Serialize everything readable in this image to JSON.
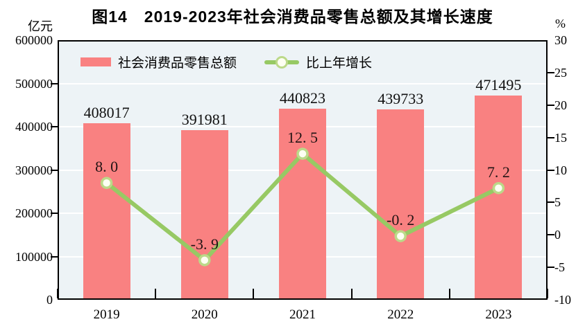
{
  "title": "图14　2019-2023年社会消费品零售总额及其增长速度",
  "axes": {
    "left_unit": "亿元",
    "right_unit": "%"
  },
  "legend": [
    {
      "label": "社会消费品零售总额",
      "marker": "bar-swatch"
    },
    {
      "label": "比上年增长",
      "marker": "line-circle"
    }
  ],
  "colors": {
    "bar": "#f98181",
    "line": "#97c964",
    "marker_fill": "#fdfff2",
    "marker_ring": "#bcd989",
    "plot_bg": "#edf3f6",
    "grid": "#ffffff",
    "axis": "#000000",
    "bar_label": "#111111",
    "line_label": "#221414"
  },
  "chart_data": {
    "type": "bar",
    "subtype": "bar+line combo",
    "title": "图14　2019-2023年社会消费品零售总额及其增长速度",
    "categories": [
      "2019",
      "2020",
      "2021",
      "2022",
      "2023"
    ],
    "series": [
      {
        "name": "社会消费品零售总额",
        "type": "bar",
        "axis": "left",
        "values": [
          408017,
          391981,
          440823,
          439733,
          471495
        ],
        "labels": [
          "408017",
          "391981",
          "440823",
          "439733",
          "471495"
        ]
      },
      {
        "name": "比上年增长",
        "type": "line",
        "axis": "right",
        "values": [
          8.0,
          -3.9,
          12.5,
          -0.2,
          7.2
        ],
        "labels": [
          "8. 0",
          "-3. 9",
          "12. 5",
          "-0. 2",
          "7. 2"
        ]
      }
    ],
    "left_axis": {
      "unit": "亿元",
      "min": 0,
      "max": 600000,
      "step": 100000,
      "tick_labels": [
        "0",
        "100000",
        "200000",
        "300000",
        "400000",
        "500000",
        "600000"
      ]
    },
    "right_axis": {
      "unit": "%",
      "min": -10,
      "max": 30,
      "step": 5,
      "tick_labels": [
        "-10",
        "-5",
        "0",
        "5",
        "10",
        "15",
        "20",
        "25",
        "30"
      ]
    },
    "grid": "horizontal white lines at left-axis steps",
    "legend_position": "top-left inside plot"
  }
}
